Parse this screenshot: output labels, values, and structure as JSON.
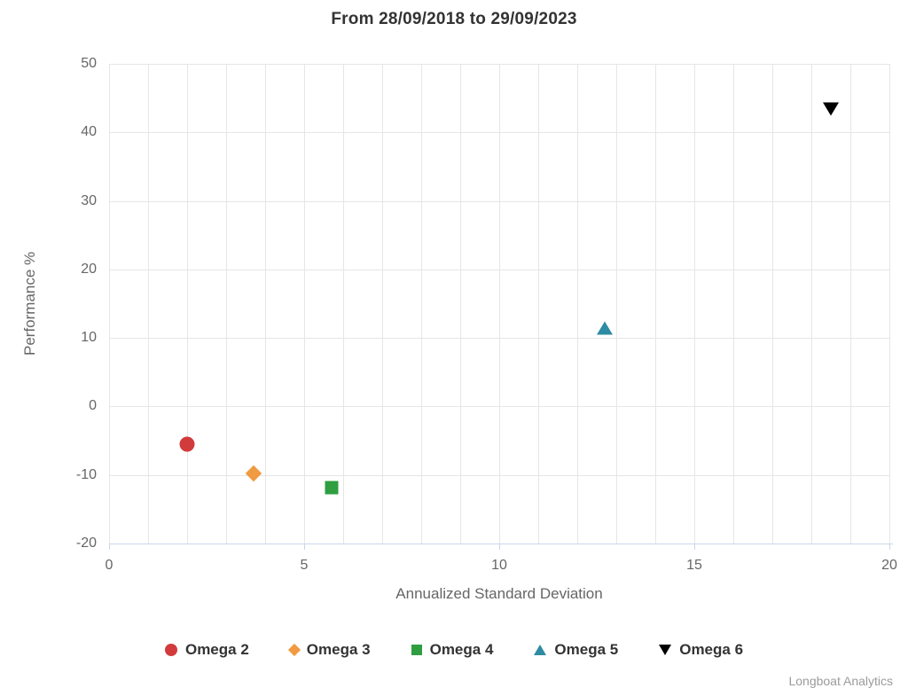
{
  "title": "From 28/09/2018 to 29/09/2023",
  "credit": "Longboat Analytics",
  "colors": {
    "grid": "#e6e6e6",
    "axis_line": "#ccd6eb",
    "title_text": "#333333",
    "axis_text": "#666666",
    "legend_text": "#333333",
    "credit_text": "#9b9b9b"
  },
  "chart_data": {
    "type": "scatter",
    "title": "From 28/09/2018 to 29/09/2023",
    "xlabel": "Annualized Standard Deviation",
    "ylabel": "Performance %",
    "xlim": [
      0,
      20
    ],
    "ylim": [
      -20,
      50
    ],
    "xticks": [
      0,
      5,
      10,
      15,
      20
    ],
    "yticks": [
      -20,
      -10,
      0,
      10,
      20,
      30,
      40,
      50
    ],
    "x_grid_step": 1,
    "y_grid_step": 10,
    "grid": true,
    "legend_position": "bottom",
    "series": [
      {
        "name": "Omega 2",
        "marker": "circle",
        "color": "#d23b3b",
        "points": [
          [
            2.0,
            -5.5
          ]
        ]
      },
      {
        "name": "Omega 3",
        "marker": "diamond",
        "color": "#f09a41",
        "points": [
          [
            3.7,
            -9.8
          ]
        ]
      },
      {
        "name": "Omega 4",
        "marker": "square",
        "color": "#2f9e41",
        "points": [
          [
            5.7,
            -11.8
          ]
        ]
      },
      {
        "name": "Omega 5",
        "marker": "triangle",
        "color": "#2d8ba3",
        "points": [
          [
            12.7,
            11.4
          ]
        ]
      },
      {
        "name": "Omega 6",
        "marker": "triangle-down",
        "color": "#000000",
        "points": [
          [
            18.5,
            43.4
          ]
        ]
      }
    ]
  }
}
